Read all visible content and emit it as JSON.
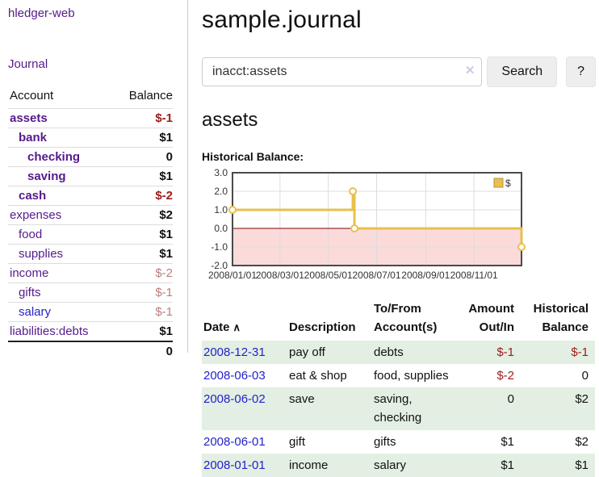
{
  "colors": {
    "link_purple": "#551a8b",
    "link_blue": "#2222cc",
    "negative_strong": "#9b1c1c",
    "negative_muted": "#b97f7f",
    "row_stripe_green": "#e3efe3",
    "chart_line_gold": "#e8c04d",
    "chart_negative_fill_pink": "#fbdada",
    "chart_zero_line": "#7f0000",
    "button_bg": "#eeeeee"
  },
  "sidebar": {
    "app_title": "hledger-web",
    "nav": {
      "journal_label": "Journal"
    },
    "accounts_table": {
      "headers": {
        "account": "Account",
        "balance": "Balance"
      },
      "rows": [
        {
          "label": "assets",
          "level": 1,
          "bold": true,
          "link": "purple",
          "balance": "$-1",
          "tone": "neg"
        },
        {
          "label": "bank",
          "level": 2,
          "bold": true,
          "link": "purple",
          "balance": "$1",
          "tone": "pos"
        },
        {
          "label": "checking",
          "level": 3,
          "bold": true,
          "link": "purple",
          "balance": "0",
          "tone": "pos"
        },
        {
          "label": "saving",
          "level": 3,
          "bold": true,
          "link": "purple",
          "balance": "$1",
          "tone": "pos"
        },
        {
          "label": "cash",
          "level": 2,
          "bold": true,
          "link": "purple",
          "balance": "$-2",
          "tone": "neg"
        },
        {
          "label": "expenses",
          "level": 1,
          "bold": false,
          "link": "purple",
          "balance": "$2",
          "tone": "pos"
        },
        {
          "label": "food",
          "level": 2,
          "bold": false,
          "link": "purple",
          "balance": "$1",
          "tone": "pos"
        },
        {
          "label": "supplies",
          "level": 2,
          "bold": false,
          "link": "purple",
          "balance": "$1",
          "tone": "pos"
        },
        {
          "label": "income",
          "level": 1,
          "bold": false,
          "link": "purple",
          "balance": "$-2",
          "tone": "neg-muted"
        },
        {
          "label": "gifts",
          "level": 2,
          "bold": false,
          "link": "purple",
          "balance": "$-1",
          "tone": "neg-muted"
        },
        {
          "label": "salary",
          "level": 2,
          "bold": false,
          "link": "blue",
          "balance": "$-1",
          "tone": "neg-muted"
        },
        {
          "label": "liabilities:debts",
          "level": 1,
          "bold": false,
          "link": "purple",
          "balance": "$1",
          "tone": "pos"
        }
      ],
      "total": "0"
    }
  },
  "main": {
    "title": "sample.journal",
    "search": {
      "value": "inacct:assets",
      "clear_icon": "✕",
      "search_button": "Search",
      "help_button": "?"
    },
    "account_heading": "assets",
    "chart_heading": "Historical Balance:"
  },
  "chart_data": {
    "type": "line",
    "style": "step",
    "title": "Historical Balance:",
    "legend": {
      "position": "top-right"
    },
    "grid": true,
    "xlim": [
      "2008-01-01",
      "2008-12-31"
    ],
    "ylim": [
      -2,
      3
    ],
    "y_ticks": [
      {
        "label": "3.0",
        "value": 3
      },
      {
        "label": "2.0",
        "value": 2
      },
      {
        "label": "1.0",
        "value": 1
      },
      {
        "label": "0.0",
        "value": 0
      },
      {
        "label": "-1.0",
        "value": -1
      },
      {
        "label": "-2.0",
        "value": -2
      }
    ],
    "x_ticks": [
      {
        "label": "2008/01/01",
        "date": "2008-01-01"
      },
      {
        "label": "2008/03/01",
        "date": "2008-03-01"
      },
      {
        "label": "2008/05/01",
        "date": "2008-05-01"
      },
      {
        "label": "2008/07/01",
        "date": "2008-07-01"
      },
      {
        "label": "2008/09/01",
        "date": "2008-09-01"
      },
      {
        "label": "2008/11/01",
        "date": "2008-11-01"
      }
    ],
    "series": [
      {
        "name": "$",
        "points": [
          {
            "date": "2008-01-01",
            "value": 1
          },
          {
            "date": "2008-06-01",
            "value": 2
          },
          {
            "date": "2008-06-03",
            "value": 0
          },
          {
            "date": "2008-12-31",
            "value": -1
          }
        ]
      }
    ]
  },
  "register_table": {
    "headers": {
      "date": "Date",
      "description": "Description",
      "accounts": "To/From Account(s)",
      "amount": "Amount Out/In",
      "balance": "Historical Balance"
    },
    "sort_icon": "∧",
    "rows": [
      {
        "date": "2008-12-31",
        "description": "pay off",
        "accounts": "debts",
        "amount": "$-1",
        "amount_neg": true,
        "balance": "$-1",
        "balance_neg": true
      },
      {
        "date": "2008-06-03",
        "description": "eat & shop",
        "accounts": "food, supplies",
        "amount": "$-2",
        "amount_neg": true,
        "balance": "0",
        "balance_neg": false
      },
      {
        "date": "2008-06-02",
        "description": "save",
        "accounts": "saving, checking",
        "amount": "0",
        "amount_neg": false,
        "balance": "$2",
        "balance_neg": false
      },
      {
        "date": "2008-06-01",
        "description": "gift",
        "accounts": "gifts",
        "amount": "$1",
        "amount_neg": false,
        "balance": "$2",
        "balance_neg": false
      },
      {
        "date": "2008-01-01",
        "description": "income",
        "accounts": "salary",
        "amount": "$1",
        "amount_neg": false,
        "balance": "$1",
        "balance_neg": false
      }
    ]
  }
}
